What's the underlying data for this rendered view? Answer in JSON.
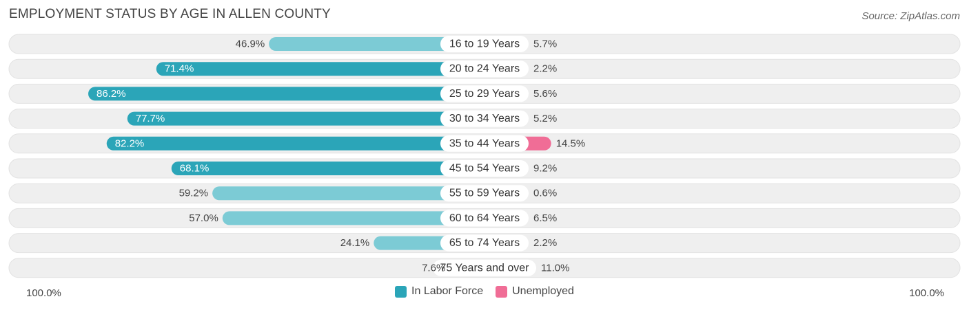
{
  "title": "EMPLOYMENT STATUS BY AGE IN ALLEN COUNTY",
  "source": "Source: ZipAtlas.com",
  "colors": {
    "labor_dark": "#2ba5b8",
    "labor_light": "#7ccbd5",
    "unemp_dark": "#f06d96",
    "unemp_light": "#f7a8c1",
    "track": "#efefef"
  },
  "legend": {
    "labor": "In Labor Force",
    "unemployed": "Unemployed"
  },
  "axis": {
    "left": "100.0%",
    "right": "100.0%"
  },
  "chart_data": {
    "type": "bar",
    "orientation": "horizontal-diverging",
    "xlim": [
      -100,
      100
    ],
    "categories": [
      "16 to 19 Years",
      "20 to 24 Years",
      "25 to 29 Years",
      "30 to 34 Years",
      "35 to 44 Years",
      "45 to 54 Years",
      "55 to 59 Years",
      "60 to 64 Years",
      "65 to 74 Years",
      "75 Years and over"
    ],
    "series": [
      {
        "name": "In Labor Force",
        "values": [
          46.9,
          71.4,
          86.2,
          77.7,
          82.2,
          68.1,
          59.2,
          57.0,
          24.1,
          7.6
        ],
        "labels": [
          "46.9%",
          "71.4%",
          "86.2%",
          "77.7%",
          "82.2%",
          "68.1%",
          "59.2%",
          "57.0%",
          "24.1%",
          "7.6%"
        ]
      },
      {
        "name": "Unemployed",
        "values": [
          5.7,
          2.2,
          5.6,
          5.2,
          14.5,
          9.2,
          0.6,
          6.5,
          2.2,
          11.0
        ],
        "labels": [
          "5.7%",
          "2.2%",
          "5.6%",
          "5.2%",
          "14.5%",
          "9.2%",
          "0.6%",
          "6.5%",
          "2.2%",
          "11.0%"
        ]
      }
    ],
    "legend_position": "bottom-center"
  }
}
